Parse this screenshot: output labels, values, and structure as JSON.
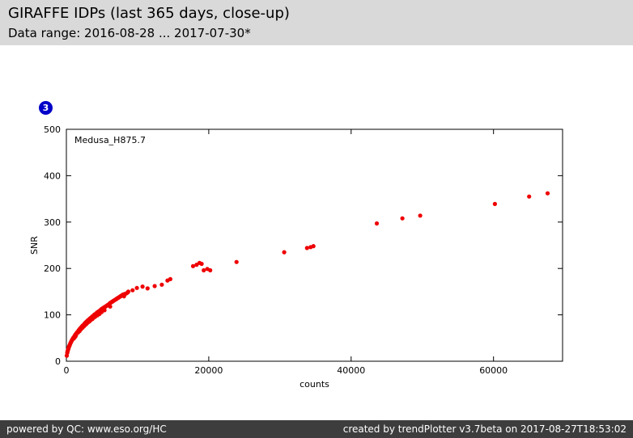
{
  "header": {
    "title": "GIRAFFE IDPs (last 365 days, close-up)",
    "subtitle": "Data range: 2016-08-28 ... 2017-07-30*"
  },
  "badge": {
    "label": "3",
    "color": "#0000c8"
  },
  "chart_data": {
    "type": "scatter",
    "series_label": "Medusa_H875.7",
    "xlabel": "counts",
    "ylabel": "SNR",
    "xlim": [
      0,
      69700
    ],
    "ylim": [
      0,
      500
    ],
    "x_ticks": [
      0,
      20000,
      40000,
      60000
    ],
    "y_ticks": [
      0,
      100,
      200,
      300,
      400,
      500
    ],
    "grid": false,
    "marker_color": "#ee0000",
    "points": [
      [
        60,
        12
      ],
      [
        120,
        18
      ],
      [
        160,
        21
      ],
      [
        200,
        23
      ],
      [
        240,
        25
      ],
      [
        280,
        27
      ],
      [
        320,
        29
      ],
      [
        360,
        31
      ],
      [
        400,
        33
      ],
      [
        450,
        34
      ],
      [
        500,
        36
      ],
      [
        550,
        38
      ],
      [
        600,
        40
      ],
      [
        650,
        41
      ],
      [
        700,
        43
      ],
      [
        750,
        44
      ],
      [
        800,
        46
      ],
      [
        850,
        47
      ],
      [
        900,
        48
      ],
      [
        950,
        50
      ],
      [
        1000,
        51
      ],
      [
        1050,
        49
      ],
      [
        1100,
        53
      ],
      [
        1150,
        54
      ],
      [
        1200,
        56
      ],
      [
        1250,
        53
      ],
      [
        1300,
        58
      ],
      [
        1350,
        56
      ],
      [
        1400,
        60
      ],
      [
        1450,
        61
      ],
      [
        1500,
        62
      ],
      [
        1600,
        64
      ],
      [
        1650,
        62
      ],
      [
        1700,
        66
      ],
      [
        1800,
        68
      ],
      [
        1850,
        65
      ],
      [
        1900,
        70
      ],
      [
        2000,
        72
      ],
      [
        2050,
        69
      ],
      [
        2100,
        73
      ],
      [
        2200,
        75
      ],
      [
        2250,
        72
      ],
      [
        2300,
        77
      ],
      [
        2400,
        78
      ],
      [
        2450,
        75
      ],
      [
        2500,
        80
      ],
      [
        2600,
        82
      ],
      [
        2650,
        78
      ],
      [
        2700,
        83
      ],
      [
        2800,
        85
      ],
      [
        2850,
        81
      ],
      [
        2900,
        86
      ],
      [
        3000,
        88
      ],
      [
        3050,
        84
      ],
      [
        3100,
        89
      ],
      [
        3200,
        90
      ],
      [
        3250,
        86
      ],
      [
        3300,
        92
      ],
      [
        3400,
        93
      ],
      [
        3450,
        89
      ],
      [
        3500,
        94
      ],
      [
        3600,
        96
      ],
      [
        3650,
        91
      ],
      [
        3700,
        97
      ],
      [
        3800,
        98
      ],
      [
        3850,
        94
      ],
      [
        3900,
        100
      ],
      [
        4000,
        101
      ],
      [
        4050,
        96
      ],
      [
        4100,
        102
      ],
      [
        4200,
        103
      ],
      [
        4300,
        105
      ],
      [
        4350,
        99
      ],
      [
        4400,
        106
      ],
      [
        4500,
        107
      ],
      [
        4600,
        108
      ],
      [
        4650,
        102
      ],
      [
        4700,
        109
      ],
      [
        4800,
        110
      ],
      [
        4900,
        112
      ],
      [
        4950,
        106
      ],
      [
        5000,
        113
      ],
      [
        5100,
        114
      ],
      [
        5200,
        115
      ],
      [
        5300,
        116
      ],
      [
        5350,
        110
      ],
      [
        5400,
        117
      ],
      [
        5500,
        118
      ],
      [
        5600,
        119
      ],
      [
        5700,
        120
      ],
      [
        5800,
        121
      ],
      [
        5900,
        122
      ],
      [
        6000,
        123
      ],
      [
        6100,
        125
      ],
      [
        6150,
        118
      ],
      [
        6200,
        126
      ],
      [
        6300,
        127
      ],
      [
        6400,
        128
      ],
      [
        6500,
        129
      ],
      [
        6600,
        130
      ],
      [
        6700,
        131
      ],
      [
        6800,
        132
      ],
      [
        6900,
        133
      ],
      [
        7000,
        134
      ],
      [
        7100,
        135
      ],
      [
        7200,
        136
      ],
      [
        7300,
        137
      ],
      [
        7400,
        138
      ],
      [
        7500,
        139
      ],
      [
        7600,
        140
      ],
      [
        7700,
        141
      ],
      [
        7800,
        142
      ],
      [
        7900,
        143
      ],
      [
        8000,
        144
      ],
      [
        8100,
        140
      ],
      [
        8200,
        145
      ],
      [
        8400,
        146
      ],
      [
        8600,
        148
      ],
      [
        8700,
        150
      ],
      [
        9300,
        153
      ],
      [
        9900,
        158
      ],
      [
        10700,
        161
      ],
      [
        11400,
        157
      ],
      [
        12400,
        162
      ],
      [
        13400,
        165
      ],
      [
        14200,
        174
      ],
      [
        14600,
        177
      ],
      [
        17800,
        205
      ],
      [
        18300,
        208
      ],
      [
        18700,
        212
      ],
      [
        19000,
        210
      ],
      [
        19300,
        196
      ],
      [
        19800,
        199
      ],
      [
        20200,
        196
      ],
      [
        23900,
        214
      ],
      [
        30600,
        235
      ],
      [
        33800,
        244
      ],
      [
        34300,
        246
      ],
      [
        34700,
        248
      ],
      [
        43600,
        297
      ],
      [
        47200,
        308
      ],
      [
        49700,
        314
      ],
      [
        60200,
        339
      ],
      [
        65000,
        355
      ],
      [
        67600,
        362
      ]
    ]
  },
  "footer": {
    "left": "powered by QC: www.eso.org/HC",
    "right": "created by trendPlotter v3.7beta on 2017-08-27T18:53:02"
  }
}
